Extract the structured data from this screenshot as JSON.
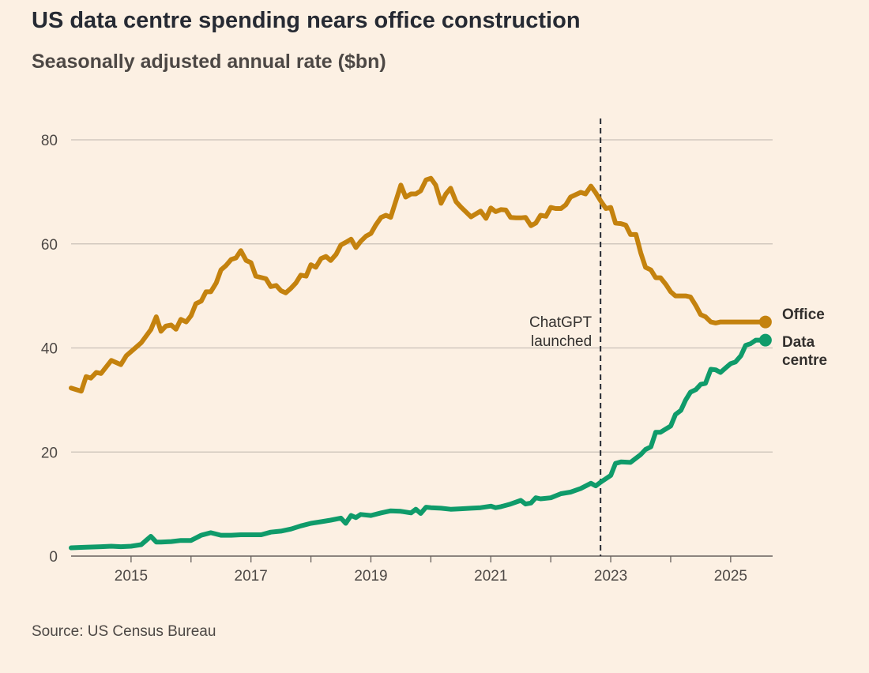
{
  "header": {
    "title": "US data centre spending nears office construction",
    "subtitle": "Seasonally adjusted annual rate ($bn)"
  },
  "footer": {
    "source": "Source: US Census Bureau"
  },
  "colors": {
    "office": "#c4820e",
    "data_centre": "#0f9b6a",
    "grid": "#c9c0b7",
    "text": "#33302e"
  },
  "chart_data": {
    "type": "line",
    "xlabel": "",
    "ylabel": "",
    "xlim": [
      2014.0,
      2025.7
    ],
    "ylim": [
      0,
      80
    ],
    "y_ticks": [
      0,
      20,
      40,
      60,
      80
    ],
    "x_ticks": [
      2015,
      2017,
      2019,
      2021,
      2023,
      2025
    ],
    "grid": "horizontal",
    "legend": "end-of-line labels",
    "series": [
      {
        "name": "Office",
        "label_lines": [
          "Office"
        ],
        "color": "#c4820e",
        "x": [
          2014.0,
          2014.17,
          2014.25,
          2014.33,
          2014.42,
          2014.5,
          2014.67,
          2014.83,
          2014.92,
          2015.0,
          2015.17,
          2015.33,
          2015.42,
          2015.5,
          2015.58,
          2015.67,
          2015.75,
          2015.83,
          2015.92,
          2016.0,
          2016.08,
          2016.17,
          2016.25,
          2016.33,
          2016.42,
          2016.5,
          2016.58,
          2016.67,
          2016.75,
          2016.83,
          2016.92,
          2017.0,
          2017.08,
          2017.25,
          2017.33,
          2017.42,
          2017.5,
          2017.58,
          2017.67,
          2017.75,
          2017.83,
          2017.92,
          2018.0,
          2018.08,
          2018.17,
          2018.25,
          2018.33,
          2018.42,
          2018.5,
          2018.58,
          2018.67,
          2018.75,
          2018.83,
          2018.92,
          2019.0,
          2019.08,
          2019.17,
          2019.25,
          2019.33,
          2019.42,
          2019.5,
          2019.58,
          2019.67,
          2019.75,
          2019.83,
          2019.92,
          2020.0,
          2020.08,
          2020.17,
          2020.25,
          2020.33,
          2020.42,
          2020.5,
          2020.67,
          2020.83,
          2020.92,
          2021.0,
          2021.08,
          2021.17,
          2021.25,
          2021.33,
          2021.42,
          2021.5,
          2021.58,
          2021.67,
          2021.75,
          2021.83,
          2021.92,
          2022.0,
          2022.08,
          2022.17,
          2022.25,
          2022.33,
          2022.5,
          2022.58,
          2022.67,
          2022.75,
          2022.83,
          2022.92,
          2023.0,
          2023.08,
          2023.17,
          2023.25,
          2023.33,
          2023.42,
          2023.5,
          2023.58,
          2023.67,
          2023.75,
          2023.83,
          2023.92,
          2024.0,
          2024.08,
          2024.17,
          2024.25,
          2024.33,
          2024.42,
          2024.5,
          2024.58,
          2024.67,
          2024.75,
          2024.83,
          2024.92,
          2025.0,
          2025.08,
          2025.17,
          2025.25,
          2025.33,
          2025.42,
          2025.58
        ],
        "values": [
          32.3,
          31.7,
          34.5,
          34.2,
          35.3,
          35.1,
          37.6,
          36.8,
          38.5,
          39.3,
          41.0,
          43.5,
          46.0,
          43.2,
          44.2,
          44.4,
          43.6,
          45.5,
          45.0,
          46.2,
          48.5,
          49.0,
          50.8,
          50.8,
          52.5,
          55.0,
          55.8,
          57.0,
          57.3,
          58.7,
          56.8,
          56.4,
          53.8,
          53.3,
          51.8,
          52.0,
          51.0,
          50.6,
          51.5,
          52.5,
          54.0,
          53.8,
          56.0,
          55.5,
          57.2,
          57.6,
          56.8,
          58.0,
          59.8,
          60.3,
          60.9,
          59.3,
          60.5,
          61.5,
          62.0,
          63.6,
          65.1,
          65.5,
          65.1,
          68.4,
          71.3,
          69.0,
          69.6,
          69.6,
          70.2,
          72.3,
          72.6,
          71.3,
          67.8,
          69.6,
          70.7,
          68.1,
          67.1,
          65.2,
          66.3,
          64.9,
          66.9,
          66.2,
          66.6,
          66.5,
          65.1,
          65.0,
          65.0,
          65.1,
          63.5,
          64.0,
          65.5,
          65.3,
          67.0,
          66.8,
          66.8,
          67.5,
          69.0,
          69.9,
          69.6,
          71.1,
          69.8,
          68.3,
          66.8,
          67.0,
          64.0,
          63.9,
          63.6,
          61.8,
          61.8,
          58.3,
          55.5,
          55.0,
          53.5,
          53.5,
          52.2,
          50.8,
          50.0,
          50.0,
          50.0,
          49.8,
          48.1,
          46.4,
          46.0,
          45.0,
          44.8,
          45.0,
          45.0,
          45.0,
          45.0,
          45.0,
          45.0,
          45.0,
          45.0,
          45.0
        ]
      },
      {
        "name": "Data centre",
        "label_lines": [
          "Data",
          "centre"
        ],
        "color": "#0f9b6a",
        "x": [
          2014.0,
          2014.25,
          2014.5,
          2014.67,
          2014.83,
          2015.0,
          2015.17,
          2015.25,
          2015.33,
          2015.42,
          2015.5,
          2015.67,
          2015.83,
          2016.0,
          2016.17,
          2016.33,
          2016.5,
          2016.67,
          2016.83,
          2017.0,
          2017.17,
          2017.33,
          2017.5,
          2017.67,
          2017.83,
          2018.0,
          2018.17,
          2018.33,
          2018.5,
          2018.58,
          2018.67,
          2018.75,
          2018.83,
          2019.0,
          2019.17,
          2019.33,
          2019.5,
          2019.67,
          2019.75,
          2019.83,
          2019.92,
          2020.0,
          2020.17,
          2020.33,
          2020.5,
          2020.67,
          2020.83,
          2021.0,
          2021.08,
          2021.17,
          2021.33,
          2021.5,
          2021.58,
          2021.67,
          2021.75,
          2021.83,
          2022.0,
          2022.17,
          2022.33,
          2022.5,
          2022.67,
          2022.75,
          2022.83,
          2023.0,
          2023.08,
          2023.17,
          2023.33,
          2023.5,
          2023.58,
          2023.67,
          2023.75,
          2023.83,
          2024.0,
          2024.08,
          2024.17,
          2024.25,
          2024.33,
          2024.42,
          2024.5,
          2024.58,
          2024.67,
          2024.75,
          2024.83,
          2024.92,
          2025.0,
          2025.08,
          2025.17,
          2025.25,
          2025.33,
          2025.42,
          2025.58
        ],
        "values": [
          1.6,
          1.7,
          1.8,
          1.9,
          1.8,
          1.9,
          2.2,
          3.0,
          3.8,
          2.7,
          2.7,
          2.8,
          3.0,
          3.0,
          4.0,
          4.5,
          4.0,
          4.0,
          4.1,
          4.1,
          4.1,
          4.6,
          4.8,
          5.2,
          5.8,
          6.3,
          6.6,
          6.9,
          7.3,
          6.3,
          7.8,
          7.4,
          8.0,
          7.8,
          8.3,
          8.7,
          8.6,
          8.3,
          9.0,
          8.2,
          9.4,
          9.3,
          9.2,
          9.0,
          9.1,
          9.2,
          9.3,
          9.6,
          9.3,
          9.5,
          10.0,
          10.7,
          10.0,
          10.2,
          11.2,
          11.0,
          11.2,
          12.0,
          12.3,
          13.0,
          14.0,
          13.5,
          14.2,
          15.5,
          17.8,
          18.1,
          18.0,
          19.5,
          20.5,
          21.0,
          23.8,
          23.8,
          25.0,
          27.2,
          28.0,
          30.0,
          31.5,
          32.0,
          33.0,
          33.2,
          35.9,
          35.8,
          35.3,
          36.2,
          37.0,
          37.3,
          38.5,
          40.5,
          40.8,
          41.5,
          41.5
        ]
      }
    ],
    "annotations": [
      {
        "x": 2022.83,
        "text_lines": [
          "ChatGPT",
          "launched"
        ],
        "style": "dashed-vertical"
      }
    ]
  }
}
